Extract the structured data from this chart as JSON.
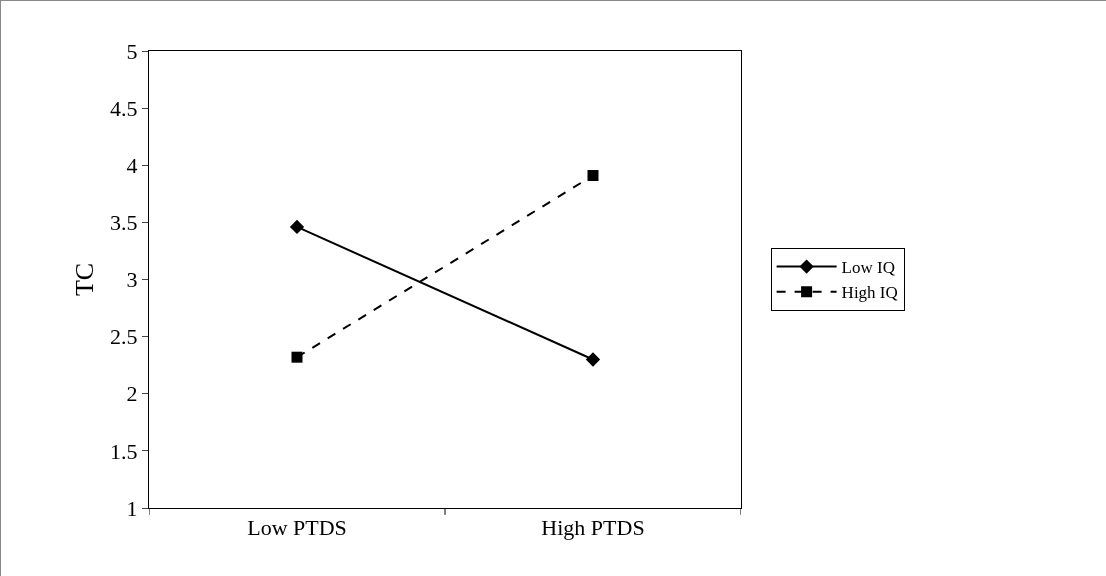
{
  "chart_data": {
    "type": "line",
    "ylabel": "TC",
    "categories": [
      "Low PTDS",
      "High PTDS"
    ],
    "series": [
      {
        "name": "Low IQ",
        "color": "#000000",
        "values": [
          3.46,
          2.3
        ],
        "marker": "diamond",
        "line_style": "solid"
      },
      {
        "name": "High IQ",
        "color": "#000000",
        "values": [
          2.32,
          3.91
        ],
        "marker": "square",
        "line_style": "dashed"
      }
    ],
    "ylim": [
      1,
      5
    ],
    "yticks": [
      1,
      1.5,
      2,
      2.5,
      3,
      3.5,
      4,
      4.5,
      5
    ],
    "grid": false,
    "legend": "right"
  }
}
